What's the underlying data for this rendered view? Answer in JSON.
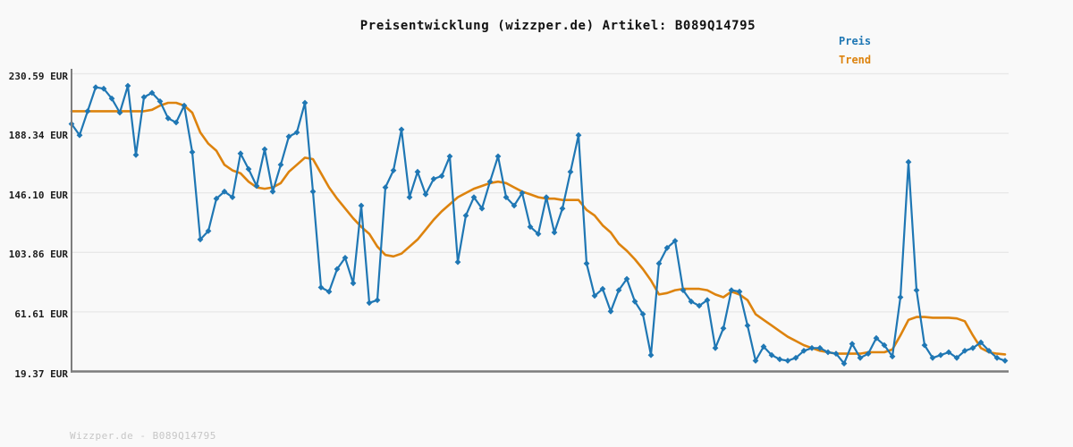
{
  "title": "Preisentwicklung (wizzper.de) Artikel: B089Q14795",
  "watermark": "Wizzper.de - B089Q14795",
  "legend": [
    {
      "label": "Preis",
      "color": "#1f77b4"
    },
    {
      "label": "Trend",
      "color": "#dd830e"
    }
  ],
  "colors": {
    "background": "#f9f9f9",
    "gridline": "#e8e8e8",
    "spine": "#7d7d7d",
    "price_line": "#1f77b4",
    "trend_line": "#dd830e",
    "title_text": "#111111",
    "tick_text": "#1c1c1c",
    "watermark_text": "#c6c6c6"
  },
  "chart_data": {
    "type": "line",
    "title": "Preisentwicklung (wizzper.de) Artikel: B089Q14795",
    "xlabel": "",
    "ylabel": "",
    "unit": "EUR",
    "ylim": [
      19.37,
      230.59
    ],
    "grid": true,
    "legend_position": "top-right",
    "x_tick_labels": [],
    "y_ticks": [
      {
        "label": "230.59 EUR",
        "value": 230.59
      },
      {
        "label": "188.34 EUR",
        "value": 188.34
      },
      {
        "label": "146.10 EUR",
        "value": 146.1
      },
      {
        "label": "103.86 EUR",
        "value": 103.86
      },
      {
        "label": "61.61 EUR",
        "value": 61.61
      },
      {
        "label": "19.37 EUR",
        "value": 19.37
      }
    ],
    "series": [
      {
        "name": "Preis",
        "color": "#1f77b4",
        "marker": "diamond",
        "values": [
          195,
          187,
          204,
          221,
          220,
          213,
          203,
          222,
          173,
          214,
          217,
          211,
          199,
          196,
          208,
          175,
          113,
          119,
          142,
          147,
          143,
          174,
          163,
          151,
          177,
          147,
          166,
          186,
          189,
          210,
          147,
          79,
          76,
          92,
          100,
          82,
          137,
          68,
          70,
          150,
          162,
          191,
          143,
          161,
          145,
          156,
          158,
          172,
          97,
          130,
          143,
          135,
          154,
          172,
          143,
          137,
          146,
          122,
          117,
          143,
          118,
          135,
          161,
          187,
          96,
          73,
          78,
          62,
          77,
          85,
          69,
          60,
          31,
          96,
          107,
          112,
          77,
          69,
          66,
          70,
          36,
          50,
          77,
          76,
          52,
          27,
          37,
          31,
          28,
          27,
          29,
          34,
          36,
          36,
          33,
          32,
          25,
          39,
          29,
          32,
          43,
          38,
          30,
          72,
          168,
          77,
          38,
          29,
          31,
          33,
          29,
          34,
          36,
          40,
          34,
          29,
          27
        ]
      },
      {
        "name": "Trend",
        "color": "#dd830e",
        "marker": "none",
        "values": [
          204,
          204,
          204,
          204,
          204,
          204,
          204,
          204,
          204,
          204,
          205,
          208,
          210,
          210,
          208,
          203,
          189,
          181,
          176,
          166,
          162,
          160,
          154,
          150,
          149,
          150,
          153,
          161,
          166,
          171,
          170,
          160,
          150,
          142,
          135,
          128,
          122,
          117,
          108,
          102,
          101,
          103,
          108,
          113,
          120,
          127,
          133,
          138,
          143,
          146,
          149,
          151,
          153,
          154,
          153,
          150,
          147,
          145,
          143,
          142,
          142,
          141,
          141,
          141,
          134,
          130,
          123,
          118,
          110,
          105,
          99,
          92,
          84,
          74,
          75,
          77,
          78,
          78,
          78,
          77,
          74,
          72,
          76,
          74,
          70,
          60,
          56,
          52,
          48,
          44,
          41,
          38,
          36,
          34,
          33,
          32,
          32,
          32,
          32,
          33,
          33,
          33,
          35,
          45,
          56,
          58,
          58,
          57.5,
          57.5,
          57.5,
          57,
          55,
          45,
          36,
          33,
          32,
          31.5
        ]
      }
    ]
  }
}
